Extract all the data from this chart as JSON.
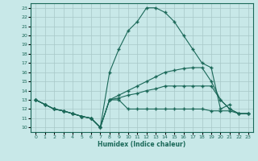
{
  "background_color": "#c8e8e8",
  "grid_color": "#a8c8c8",
  "line_color": "#1a6858",
  "xlabel": "Humidex (Indice chaleur)",
  "xlim": [
    -0.5,
    23.5
  ],
  "ylim": [
    9.5,
    23.5
  ],
  "yticks": [
    10,
    11,
    12,
    13,
    14,
    15,
    16,
    17,
    18,
    19,
    20,
    21,
    22,
    23
  ],
  "xticks": [
    0,
    1,
    2,
    3,
    4,
    5,
    6,
    7,
    8,
    9,
    10,
    11,
    12,
    13,
    14,
    15,
    16,
    17,
    18,
    19,
    20,
    21,
    22,
    23
  ],
  "lines": [
    {
      "x": [
        0,
        1,
        2,
        3,
        4,
        5,
        6,
        7,
        8,
        9,
        10,
        11,
        12,
        13,
        14,
        15,
        16,
        17,
        18,
        19,
        20,
        21
      ],
      "y": [
        13,
        12.5,
        12,
        11.8,
        11.5,
        11.2,
        11.0,
        10.0,
        16.0,
        18.5,
        20.5,
        21.5,
        23.0,
        23.0,
        22.5,
        21.5,
        20.0,
        18.5,
        17.0,
        16.5,
        12.0,
        12.5
      ]
    },
    {
      "x": [
        0,
        1,
        2,
        3,
        4,
        5,
        6,
        7,
        8,
        9,
        10,
        11,
        12,
        13,
        14,
        15,
        16,
        17,
        18,
        19,
        20,
        21,
        22,
        23
      ],
      "y": [
        13,
        12.5,
        12,
        11.8,
        11.5,
        11.2,
        11.0,
        10.0,
        13.0,
        13.5,
        14.0,
        14.5,
        15.0,
        15.5,
        16.0,
        16.2,
        16.4,
        16.5,
        16.5,
        15.0,
        13.0,
        12.0,
        11.5,
        11.5
      ]
    },
    {
      "x": [
        0,
        1,
        2,
        3,
        4,
        5,
        6,
        7,
        8,
        9,
        10,
        11,
        12,
        13,
        14,
        15,
        16,
        17,
        18,
        19,
        20,
        21,
        22,
        23
      ],
      "y": [
        13,
        12.5,
        12,
        11.8,
        11.5,
        11.2,
        11.0,
        10.0,
        13.0,
        13.2,
        13.5,
        13.7,
        14.0,
        14.2,
        14.5,
        14.5,
        14.5,
        14.5,
        14.5,
        14.5,
        13.0,
        12.0,
        11.5,
        11.5
      ]
    },
    {
      "x": [
        0,
        1,
        2,
        3,
        4,
        5,
        6,
        7,
        8,
        9,
        10,
        11,
        12,
        13,
        14,
        15,
        16,
        17,
        18,
        19,
        20,
        21,
        22,
        23
      ],
      "y": [
        13,
        12.5,
        12,
        11.8,
        11.5,
        11.2,
        11.0,
        10.0,
        13.0,
        13.0,
        12.0,
        12.0,
        12.0,
        12.0,
        12.0,
        12.0,
        12.0,
        12.0,
        12.0,
        11.8,
        11.8,
        11.8,
        11.5,
        11.5
      ]
    }
  ]
}
